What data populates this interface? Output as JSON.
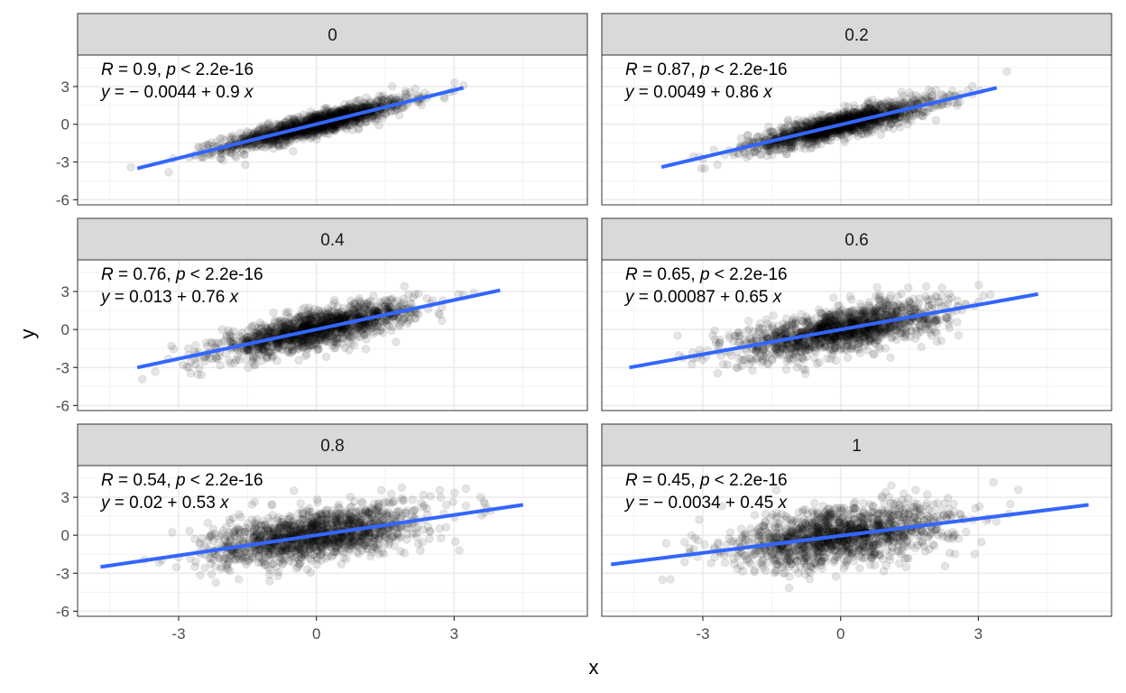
{
  "chart_data": {
    "type": "scatter",
    "xlabel": "x",
    "ylabel": "y",
    "xlim": [
      -5.2,
      5.9
    ],
    "ylim": [
      -6.4,
      5.5
    ],
    "x_ticks": [
      "-3",
      "0",
      "3"
    ],
    "y_ticks": [
      "-6",
      "-3",
      "0",
      "3"
    ],
    "x_tick_values": [
      -3,
      0,
      3
    ],
    "y_tick_values": [
      -6,
      -3,
      0,
      3
    ],
    "colors": {
      "points": "#000000",
      "line": "#3366ff",
      "strip": "#d9d9d9",
      "grid_major": "#ebebeb"
    },
    "panels": [
      {
        "label": "0",
        "annotation": {
          "R": "0.9",
          "p": "2.2e-16",
          "eq": "− 0.0044 + 0.9"
        },
        "line": {
          "x": [
            -3.9,
            3.2
          ],
          "y": [
            -3.5,
            2.9
          ]
        },
        "sd_x": 1.0,
        "sd_e": 0.44
      },
      {
        "label": "0.2",
        "annotation": {
          "R": "0.87",
          "p": "2.2e-16",
          "eq": "0.0049 + 0.86"
        },
        "line": {
          "x": [
            -3.9,
            3.4
          ],
          "y": [
            -3.4,
            2.9
          ]
        },
        "sd_x": 1.0,
        "sd_e": 0.5
      },
      {
        "label": "0.4",
        "annotation": {
          "R": "0.76",
          "p": "2.2e-16",
          "eq": "0.013 + 0.76"
        },
        "line": {
          "x": [
            -3.9,
            4.0
          ],
          "y": [
            -3.0,
            3.1
          ]
        },
        "sd_x": 1.05,
        "sd_e": 0.68
      },
      {
        "label": "0.6",
        "annotation": {
          "R": "0.65",
          "p": "2.2e-16",
          "eq": "0.00087 + 0.65"
        },
        "line": {
          "x": [
            -4.6,
            4.3
          ],
          "y": [
            -3.0,
            2.8
          ]
        },
        "sd_x": 1.1,
        "sd_e": 0.85
      },
      {
        "label": "0.8",
        "annotation": {
          "R": "0.54",
          "p": "2.2e-16",
          "eq": "0.02 + 0.53"
        },
        "line": {
          "x": [
            -4.7,
            4.5
          ],
          "y": [
            -2.5,
            2.4
          ]
        },
        "sd_x": 1.15,
        "sd_e": 1.0
      },
      {
        "label": "1",
        "annotation": {
          "R": "0.45",
          "p": "2.2e-16",
          "eq": "− 0.0034 + 0.45"
        },
        "line": {
          "x": [
            -5.0,
            5.4
          ],
          "y": [
            -2.3,
            2.4
          ]
        },
        "sd_x": 1.2,
        "sd_e": 1.1
      }
    ]
  }
}
